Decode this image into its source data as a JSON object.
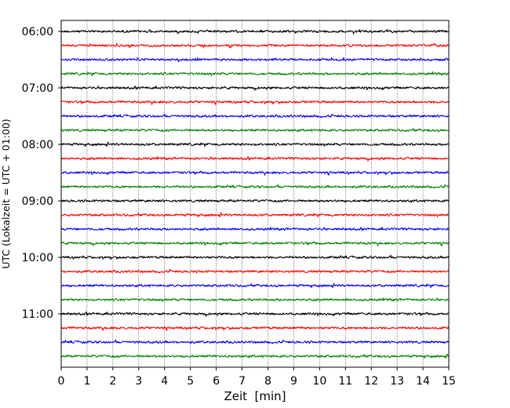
{
  "chart_data": {
    "type": "line",
    "title": "",
    "xlabel": "Zeit  [min]",
    "ylabel": "UTC (Lokalzeit = UTC + 01:00)",
    "xlim": [
      0,
      15
    ],
    "x_ticks": [
      0,
      1,
      2,
      3,
      4,
      5,
      6,
      7,
      8,
      9,
      10,
      11,
      12,
      13,
      14,
      15
    ],
    "x_tick_labels": [
      "0",
      "1",
      "2",
      "3",
      "4",
      "5",
      "6",
      "7",
      "8",
      "9",
      "10",
      "11",
      "12",
      "13",
      "14",
      "15"
    ],
    "y_tick_labels": [
      "06:00",
      "07:00",
      "08:00",
      "09:00",
      "10:00",
      "11:00"
    ],
    "trace_start": "06:00",
    "trace_interval_minutes": 15,
    "trace_count": 24,
    "trace_colors": [
      "#000000",
      "#ff0000",
      "#0000ff",
      "#008000"
    ],
    "grid": "vertical dotted at each minute",
    "legend": "none"
  }
}
